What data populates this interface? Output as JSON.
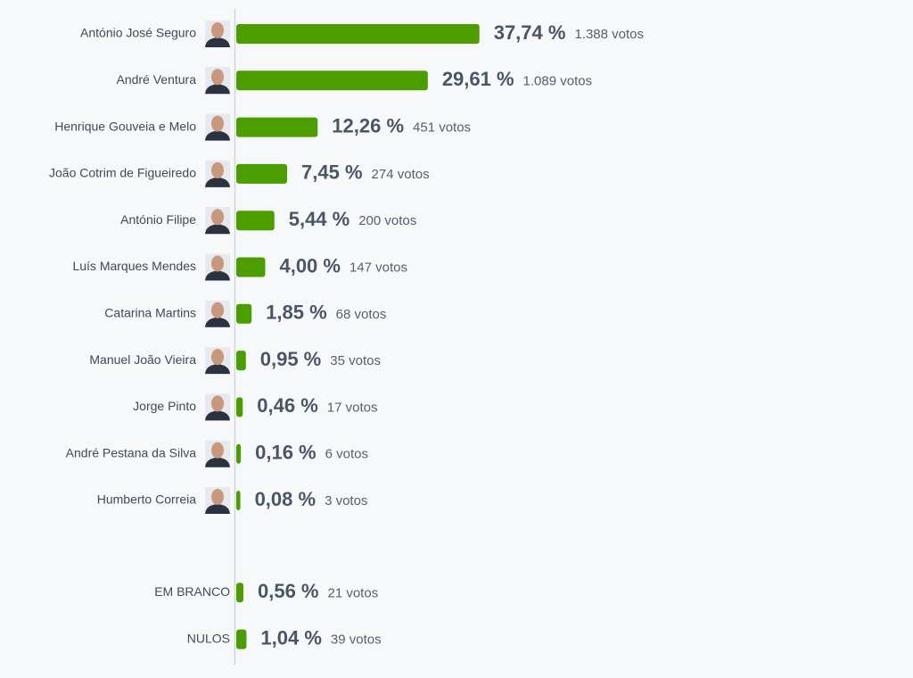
{
  "chart_data": {
    "type": "bar",
    "categories": [
      "António José Seguro",
      "André Ventura",
      "Henrique Gouveia e Melo",
      "João Cotrim de Figueiredo",
      "António Filipe",
      "Luís Marques Mendes",
      "Catarina Martins",
      "Manuel João Vieira",
      "Jorge Pinto",
      "André Pestana da Silva",
      "Humberto Correia",
      "EM BRANCO",
      "NULOS"
    ],
    "values": [
      37.74,
      29.61,
      12.26,
      7.45,
      5.44,
      4.0,
      1.85,
      0.95,
      0.46,
      0.16,
      0.08,
      0.56,
      1.04
    ],
    "value_labels": [
      "37,74 %",
      "29,61 %",
      "12,26 %",
      "7,45 %",
      "5,44 %",
      "4,00 %",
      "1,85 %",
      "0,95 %",
      "0,46 %",
      "0,16 %",
      "0,08 %",
      "0,56 %",
      "1,04 %"
    ],
    "vote_labels": [
      "1.388 votos",
      "1.089 votos",
      "451 votos",
      "274 votos",
      "200 votos",
      "147 votos",
      "68 votos",
      "35 votos",
      "17 votos",
      "6 votos",
      "3 votos",
      "21 votos",
      "39 votos"
    ],
    "color": "#4c9d00"
  }
}
